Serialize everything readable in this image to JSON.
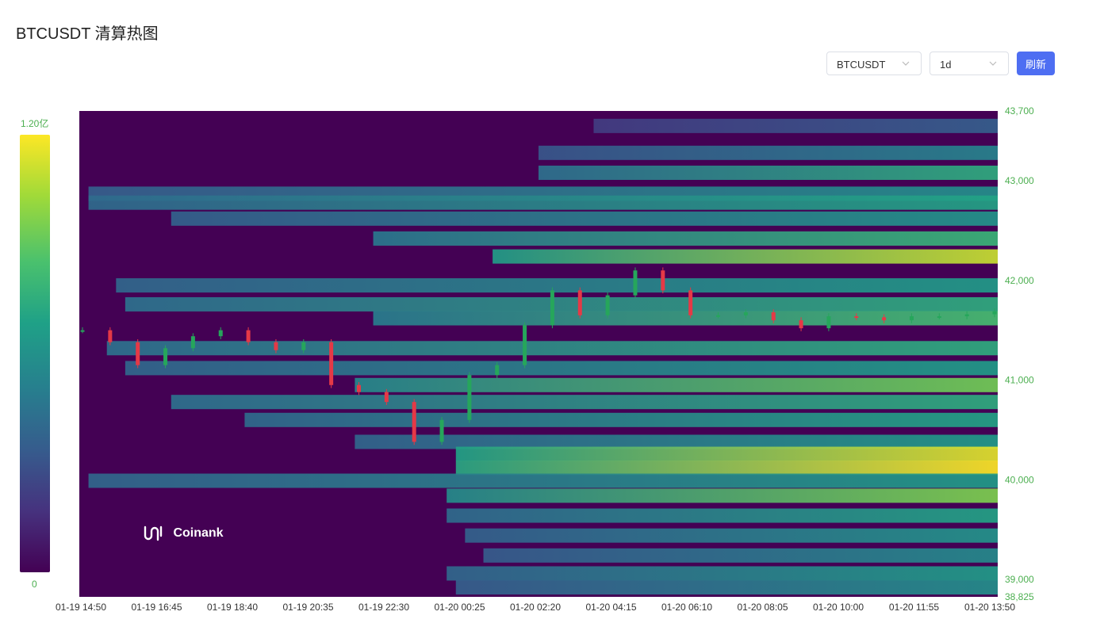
{
  "header": {
    "title": "BTCUSDT 清算热图"
  },
  "toolbar": {
    "symbol_value": "BTCUSDT",
    "interval_value": "1d",
    "refresh_label": "刷新"
  },
  "color_scale": {
    "max_label": "1.20亿",
    "min_label": "0"
  },
  "watermark": {
    "text": "Coinank",
    "icon": "coinank-logo-icon"
  },
  "colors": {
    "up": "#26a65b",
    "down": "#e53946",
    "axis_text": "#4caf50",
    "primary": "#4e6ef2"
  },
  "chart_data": {
    "type": "heatmap",
    "title": "",
    "xlabel": "",
    "ylabel": "",
    "ylim": [
      38825,
      43700
    ],
    "x_ticks": [
      "01-19 14:50",
      "01-19 16:45",
      "01-19 18:40",
      "01-19 20:35",
      "01-19 22:30",
      "01-20 00:25",
      "01-20 02:20",
      "01-20 04:15",
      "01-20 06:10",
      "01-20 08:05",
      "01-20 10:00",
      "01-20 11:55",
      "01-20 13:50"
    ],
    "y_ticks": [
      {
        "value": 43700,
        "label": "43,700"
      },
      {
        "value": 43000,
        "label": "43,000"
      },
      {
        "value": 42000,
        "label": "42,000"
      },
      {
        "value": 41000,
        "label": "41,000"
      },
      {
        "value": 40000,
        "label": "40,000"
      },
      {
        "value": 39000,
        "label": "39,000"
      },
      {
        "value": 38825,
        "label": "38,825"
      }
    ],
    "colorscale": [
      "#440154",
      "#46327e",
      "#365c8d",
      "#277f8e",
      "#1fa187",
      "#4ac16d",
      "#a0da39",
      "#fde725"
    ],
    "liquidation_bands": [
      {
        "price": 43550,
        "intensity": 0.3,
        "start": 0.56
      },
      {
        "price": 43280,
        "intensity": 0.45,
        "start": 0.5
      },
      {
        "price": 43080,
        "intensity": 0.62,
        "start": 0.5
      },
      {
        "price": 42870,
        "intensity": 0.5,
        "start": 0.01
      },
      {
        "price": 42780,
        "intensity": 0.58,
        "start": 0.01
      },
      {
        "price": 42620,
        "intensity": 0.52,
        "start": 0.1
      },
      {
        "price": 42420,
        "intensity": 0.66,
        "start": 0.32
      },
      {
        "price": 42240,
        "intensity": 0.92,
        "start": 0.45
      },
      {
        "price": 41950,
        "intensity": 0.55,
        "start": 0.04
      },
      {
        "price": 41760,
        "intensity": 0.62,
        "start": 0.05
      },
      {
        "price": 41620,
        "intensity": 0.7,
        "start": 0.32
      },
      {
        "price": 41320,
        "intensity": 0.62,
        "start": 0.03
      },
      {
        "price": 41120,
        "intensity": 0.55,
        "start": 0.05
      },
      {
        "price": 40950,
        "intensity": 0.78,
        "start": 0.3
      },
      {
        "price": 40780,
        "intensity": 0.62,
        "start": 0.1
      },
      {
        "price": 40600,
        "intensity": 0.58,
        "start": 0.18
      },
      {
        "price": 40380,
        "intensity": 0.55,
        "start": 0.3
      },
      {
        "price": 40260,
        "intensity": 0.96,
        "start": 0.41
      },
      {
        "price": 40120,
        "intensity": 1.0,
        "start": 0.41
      },
      {
        "price": 39990,
        "intensity": 0.55,
        "start": 0.01
      },
      {
        "price": 39840,
        "intensity": 0.8,
        "start": 0.4
      },
      {
        "price": 39640,
        "intensity": 0.58,
        "start": 0.4
      },
      {
        "price": 39440,
        "intensity": 0.52,
        "start": 0.42
      },
      {
        "price": 39240,
        "intensity": 0.48,
        "start": 0.44
      },
      {
        "price": 39060,
        "intensity": 0.55,
        "start": 0.4
      },
      {
        "price": 38920,
        "intensity": 0.5,
        "start": 0.41
      }
    ],
    "price_series": [
      {
        "t": "01-19 14:50",
        "close": 41500
      },
      {
        "t": "01-19 15:55",
        "close": 41380
      },
      {
        "t": "01-19 16:45",
        "close": 41150
      },
      {
        "t": "01-19 17:40",
        "close": 41320
      },
      {
        "t": "01-19 18:40",
        "close": 41440
      },
      {
        "t": "01-19 19:40",
        "close": 41500
      },
      {
        "t": "01-19 20:35",
        "close": 41380
      },
      {
        "t": "01-19 21:35",
        "close": 41300
      },
      {
        "t": "01-19 22:30",
        "close": 41380
      },
      {
        "t": "01-19 23:10",
        "close": 40950
      },
      {
        "t": "01-19 23:45",
        "close": 40880
      },
      {
        "t": "01-20 00:25",
        "close": 40780
      },
      {
        "t": "01-20 01:05",
        "close": 40380
      },
      {
        "t": "01-20 01:25",
        "close": 40600
      },
      {
        "t": "01-20 01:50",
        "close": 41050
      },
      {
        "t": "01-20 02:20",
        "close": 41150
      },
      {
        "t": "01-20 02:45",
        "close": 41550
      },
      {
        "t": "01-20 03:05",
        "close": 41900
      },
      {
        "t": "01-20 03:25",
        "close": 41650
      },
      {
        "t": "01-20 03:55",
        "close": 41850
      },
      {
        "t": "01-20 04:15",
        "close": 42100
      },
      {
        "t": "01-20 04:45",
        "close": 41900
      },
      {
        "t": "01-20 05:10",
        "close": 41650
      },
      {
        "t": "01-20 06:10",
        "close": 41650
      },
      {
        "t": "01-20 07:10",
        "close": 41680
      },
      {
        "t": "01-20 08:05",
        "close": 41600
      },
      {
        "t": "01-20 08:30",
        "close": 41520
      },
      {
        "t": "01-20 09:10",
        "close": 41640
      },
      {
        "t": "01-20 10:00",
        "close": 41630
      },
      {
        "t": "01-20 11:00",
        "close": 41600
      },
      {
        "t": "01-20 11:55",
        "close": 41640
      },
      {
        "t": "01-20 13:00",
        "close": 41640
      },
      {
        "t": "01-20 13:50",
        "close": 41660
      },
      {
        "t": "01-20 14:30",
        "close": 41690
      }
    ]
  }
}
